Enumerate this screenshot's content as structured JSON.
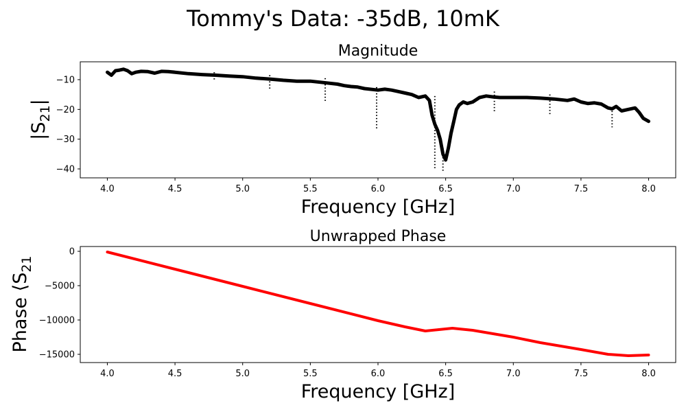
{
  "figure": {
    "suptitle": "Tommy's Data:  -35dB, 10mK"
  },
  "chart_data": [
    {
      "type": "scatter",
      "title": "Magnitude",
      "xlabel": "Frequency [GHz]",
      "ylabel_prefix": "|S",
      "ylabel_sub": "21",
      "ylabel_suffix": "|",
      "xlim": [
        3.8,
        8.2
      ],
      "ylim": [
        -43,
        -4
      ],
      "xticks": [
        4.0,
        4.5,
        5.0,
        5.5,
        6.0,
        6.5,
        7.0,
        7.5,
        8.0
      ],
      "xtick_labels": [
        "4.0",
        "4.5",
        "5.0",
        "5.5",
        "6.0",
        "6.5",
        "7.0",
        "7.5",
        "8.0"
      ],
      "yticks": [
        -40,
        -30,
        -20,
        -10
      ],
      "ytick_labels": [
        "−40",
        "−30",
        "−20",
        "−10"
      ],
      "grid": false,
      "series_color": "#000000",
      "trace": {
        "x": [
          4.0,
          4.03,
          4.06,
          4.09,
          4.12,
          4.15,
          4.18,
          4.21,
          4.25,
          4.3,
          4.35,
          4.4,
          4.45,
          4.5,
          4.6,
          4.7,
          4.8,
          4.9,
          5.0,
          5.1,
          5.2,
          5.3,
          5.4,
          5.5,
          5.6,
          5.7,
          5.75,
          5.8,
          5.85,
          5.9,
          6.0,
          6.05,
          6.1,
          6.15,
          6.2,
          6.25,
          6.3,
          6.35,
          6.38,
          6.4,
          6.42,
          6.44,
          6.46,
          6.48,
          6.5,
          6.52,
          6.54,
          6.56,
          6.58,
          6.6,
          6.63,
          6.66,
          6.7,
          6.75,
          6.8,
          6.85,
          6.9,
          7.0,
          7.1,
          7.2,
          7.3,
          7.4,
          7.45,
          7.5,
          7.55,
          7.6,
          7.65,
          7.7,
          7.73,
          7.76,
          7.8,
          7.85,
          7.9,
          7.93,
          7.96,
          8.0
        ],
        "y": [
          -7.5,
          -8.5,
          -7.0,
          -6.8,
          -6.5,
          -7.0,
          -8.0,
          -7.5,
          -7.2,
          -7.3,
          -7.8,
          -7.2,
          -7.3,
          -7.5,
          -8.0,
          -8.3,
          -8.5,
          -8.8,
          -9.0,
          -9.5,
          -9.8,
          -10.2,
          -10.5,
          -10.5,
          -11.0,
          -11.5,
          -12.0,
          -12.3,
          -12.5,
          -13.0,
          -13.5,
          -13.2,
          -13.5,
          -14.0,
          -14.5,
          -15.0,
          -16.0,
          -15.5,
          -17.0,
          -22.0,
          -25.0,
          -27.0,
          -30.0,
          -35.0,
          -37.0,
          -33.0,
          -28.0,
          -24.0,
          -20.0,
          -18.5,
          -17.5,
          -18.0,
          -17.5,
          -16.0,
          -15.5,
          -15.8,
          -16.0,
          -16.0,
          -16.0,
          -16.2,
          -16.5,
          -17.0,
          -16.5,
          -17.5,
          -18.0,
          -17.8,
          -18.2,
          -19.5,
          -19.8,
          -19.0,
          -20.5,
          -20.0,
          -19.5,
          -21.0,
          -23.0,
          -24.0
        ]
      },
      "vertical_marks": [
        {
          "x": 4.79,
          "ymin": -10.0,
          "ymax": -7.5
        },
        {
          "x": 5.2,
          "ymin": -13.5,
          "ymax": -8.5
        },
        {
          "x": 5.61,
          "ymin": -17.5,
          "ymax": -9.5
        },
        {
          "x": 5.99,
          "ymin": -27.0,
          "ymax": -12.5
        },
        {
          "x": 6.42,
          "ymin": -40.0,
          "ymax": -15.5
        },
        {
          "x": 6.48,
          "ymin": -41.0,
          "ymax": -33.0
        },
        {
          "x": 6.86,
          "ymin": -21.0,
          "ymax": -14.0
        },
        {
          "x": 7.27,
          "ymin": -22.0,
          "ymax": -15.0
        },
        {
          "x": 7.73,
          "ymin": -26.0,
          "ymax": -19.5
        }
      ]
    },
    {
      "type": "scatter",
      "title": "Unwrapped Phase",
      "xlabel": "Frequency [GHz]",
      "ylabel_prefix": "Phase ⟨S",
      "ylabel_sub": "21",
      "ylabel_suffix": "",
      "xlim": [
        3.8,
        8.2
      ],
      "ylim": [
        -16200,
        700
      ],
      "xticks": [
        4.0,
        4.5,
        5.0,
        5.5,
        6.0,
        6.5,
        7.0,
        7.5,
        8.0
      ],
      "xtick_labels": [
        "4.0",
        "4.5",
        "5.0",
        "5.5",
        "6.0",
        "6.5",
        "7.0",
        "7.5",
        "8.0"
      ],
      "yticks": [
        0,
        -5000,
        -10000,
        -15000
      ],
      "ytick_labels": [
        "0",
        "−5000",
        "−10000",
        "−15000"
      ],
      "grid": false,
      "series_color": "#ff0000",
      "trace": {
        "x": [
          4.0,
          4.5,
          5.0,
          5.5,
          6.0,
          6.2,
          6.35,
          6.45,
          6.55,
          6.7,
          6.85,
          7.0,
          7.2,
          7.5,
          7.7,
          7.85,
          8.0
        ],
        "y": [
          -100,
          -2600,
          -5100,
          -7600,
          -10100,
          -11000,
          -11600,
          -11400,
          -11200,
          -11500,
          -12000,
          -12500,
          -13300,
          -14300,
          -15000,
          -15200,
          -15100
        ]
      }
    }
  ]
}
